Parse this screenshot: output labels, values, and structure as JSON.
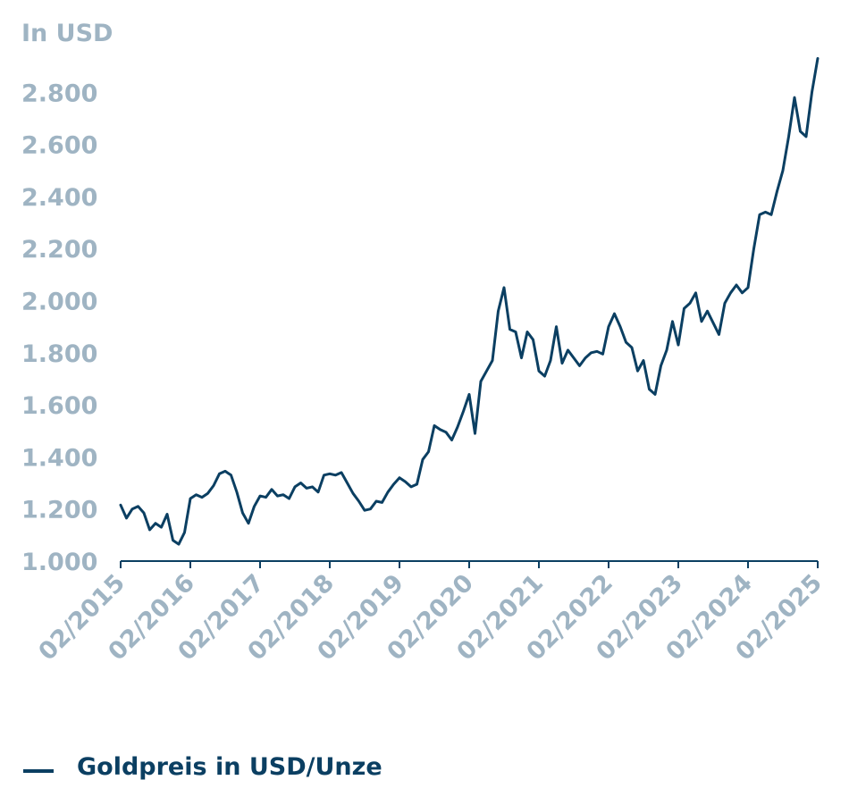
{
  "colors": {
    "series": "#0b3f62",
    "axis_text": "#9fb4c3",
    "axis_line": "#0b3f62",
    "legend_text": "#0b3f62"
  },
  "legend": {
    "label": "Goldpreis in USD/Unze"
  },
  "chart_data": {
    "type": "line",
    "ylabel": "In USD",
    "ylim": [
      1000,
      3000
    ],
    "y_ticks": [
      {
        "value": 1000,
        "label": "1.000"
      },
      {
        "value": 1200,
        "label": "1.200"
      },
      {
        "value": 1400,
        "label": "1.400"
      },
      {
        "value": 1600,
        "label": "1.600"
      },
      {
        "value": 1800,
        "label": "1.800"
      },
      {
        "value": 2000,
        "label": "2.000"
      },
      {
        "value": 2200,
        "label": "2.200"
      },
      {
        "value": 2400,
        "label": "2.400"
      },
      {
        "value": 2600,
        "label": "2.600"
      },
      {
        "value": 2800,
        "label": "2.800"
      }
    ],
    "x_ticks": [
      "02/2015",
      "02/2016",
      "02/2017",
      "02/2018",
      "02/2019",
      "02/2020",
      "02/2021",
      "02/2022",
      "02/2023",
      "02/2024",
      "02/2025"
    ],
    "grid": false,
    "legend_position": "bottom-left",
    "series": [
      {
        "name": "Goldpreis in USD/Unze",
        "points": [
          [
            "2015-02",
            1215
          ],
          [
            "2015-03",
            1165
          ],
          [
            "2015-04",
            1200
          ],
          [
            "2015-05",
            1210
          ],
          [
            "2015-06",
            1185
          ],
          [
            "2015-07",
            1120
          ],
          [
            "2015-08",
            1145
          ],
          [
            "2015-09",
            1130
          ],
          [
            "2015-10",
            1180
          ],
          [
            "2015-11",
            1080
          ],
          [
            "2015-12",
            1065
          ],
          [
            "2016-01",
            1110
          ],
          [
            "2016-02",
            1240
          ],
          [
            "2016-03",
            1255
          ],
          [
            "2016-04",
            1245
          ],
          [
            "2016-05",
            1260
          ],
          [
            "2016-06",
            1290
          ],
          [
            "2016-07",
            1335
          ],
          [
            "2016-08",
            1345
          ],
          [
            "2016-09",
            1330
          ],
          [
            "2016-10",
            1265
          ],
          [
            "2016-11",
            1185
          ],
          [
            "2016-12",
            1145
          ],
          [
            "2017-01",
            1210
          ],
          [
            "2017-02",
            1250
          ],
          [
            "2017-03",
            1245
          ],
          [
            "2017-04",
            1275
          ],
          [
            "2017-05",
            1250
          ],
          [
            "2017-06",
            1255
          ],
          [
            "2017-07",
            1240
          ],
          [
            "2017-08",
            1285
          ],
          [
            "2017-09",
            1300
          ],
          [
            "2017-10",
            1280
          ],
          [
            "2017-11",
            1285
          ],
          [
            "2017-12",
            1265
          ],
          [
            "2018-01",
            1330
          ],
          [
            "2018-02",
            1335
          ],
          [
            "2018-03",
            1330
          ],
          [
            "2018-04",
            1340
          ],
          [
            "2018-05",
            1300
          ],
          [
            "2018-06",
            1260
          ],
          [
            "2018-07",
            1230
          ],
          [
            "2018-08",
            1195
          ],
          [
            "2018-09",
            1200
          ],
          [
            "2018-10",
            1230
          ],
          [
            "2018-11",
            1225
          ],
          [
            "2018-12",
            1265
          ],
          [
            "2019-01",
            1295
          ],
          [
            "2019-02",
            1320
          ],
          [
            "2019-03",
            1305
          ],
          [
            "2019-04",
            1285
          ],
          [
            "2019-05",
            1295
          ],
          [
            "2019-06",
            1390
          ],
          [
            "2019-07",
            1420
          ],
          [
            "2019-08",
            1520
          ],
          [
            "2019-09",
            1505
          ],
          [
            "2019-10",
            1495
          ],
          [
            "2019-11",
            1465
          ],
          [
            "2019-12",
            1515
          ],
          [
            "2020-01",
            1575
          ],
          [
            "2020-02",
            1640
          ],
          [
            "2020-03",
            1490
          ],
          [
            "2020-04",
            1690
          ],
          [
            "2020-05",
            1730
          ],
          [
            "2020-06",
            1770
          ],
          [
            "2020-07",
            1960
          ],
          [
            "2020-08",
            2050
          ],
          [
            "2020-09",
            1890
          ],
          [
            "2020-10",
            1880
          ],
          [
            "2020-11",
            1780
          ],
          [
            "2020-12",
            1880
          ],
          [
            "2021-01",
            1850
          ],
          [
            "2021-02",
            1730
          ],
          [
            "2021-03",
            1710
          ],
          [
            "2021-04",
            1770
          ],
          [
            "2021-05",
            1900
          ],
          [
            "2021-06",
            1760
          ],
          [
            "2021-07",
            1810
          ],
          [
            "2021-08",
            1780
          ],
          [
            "2021-09",
            1750
          ],
          [
            "2021-10",
            1780
          ],
          [
            "2021-11",
            1800
          ],
          [
            "2021-12",
            1805
          ],
          [
            "2022-01",
            1795
          ],
          [
            "2022-02",
            1900
          ],
          [
            "2022-03",
            1950
          ],
          [
            "2022-04",
            1900
          ],
          [
            "2022-05",
            1840
          ],
          [
            "2022-06",
            1820
          ],
          [
            "2022-07",
            1730
          ],
          [
            "2022-08",
            1770
          ],
          [
            "2022-09",
            1660
          ],
          [
            "2022-10",
            1640
          ],
          [
            "2022-11",
            1750
          ],
          [
            "2022-12",
            1810
          ],
          [
            "2023-01",
            1920
          ],
          [
            "2023-02",
            1830
          ],
          [
            "2023-03",
            1970
          ],
          [
            "2023-04",
            1990
          ],
          [
            "2023-05",
            2030
          ],
          [
            "2023-06",
            1920
          ],
          [
            "2023-07",
            1960
          ],
          [
            "2023-08",
            1915
          ],
          [
            "2023-09",
            1870
          ],
          [
            "2023-10",
            1990
          ],
          [
            "2023-11",
            2030
          ],
          [
            "2023-12",
            2060
          ],
          [
            "2024-01",
            2030
          ],
          [
            "2024-02",
            2050
          ],
          [
            "2024-03",
            2200
          ],
          [
            "2024-04",
            2330
          ],
          [
            "2024-05",
            2340
          ],
          [
            "2024-06",
            2330
          ],
          [
            "2024-07",
            2420
          ],
          [
            "2024-08",
            2500
          ],
          [
            "2024-09",
            2630
          ],
          [
            "2024-10",
            2780
          ],
          [
            "2024-11",
            2650
          ],
          [
            "2024-12",
            2630
          ],
          [
            "2025-01",
            2800
          ],
          [
            "2025-02",
            2930
          ]
        ]
      }
    ]
  }
}
